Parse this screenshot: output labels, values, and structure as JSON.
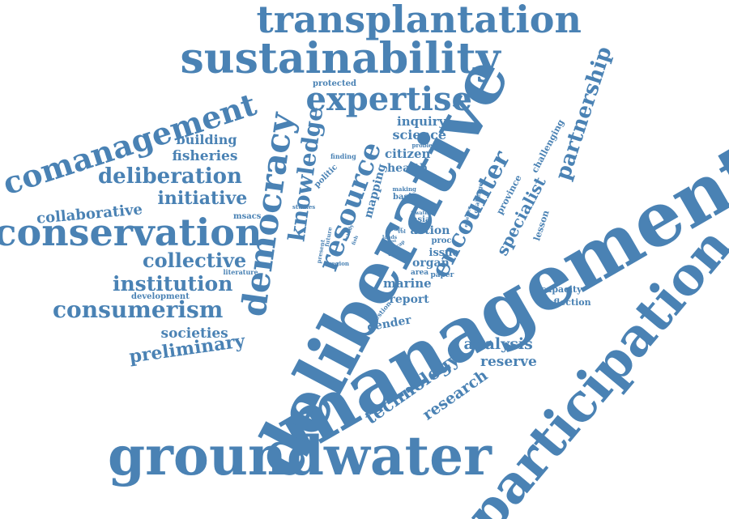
{
  "color": "#4a82b4",
  "words": [
    {
      "text": "management"
    },
    {
      "text": "deliberative"
    },
    {
      "text": "participation"
    },
    {
      "text": "groundwater"
    },
    {
      "text": "sustainability"
    },
    {
      "text": "transplantation"
    },
    {
      "text": "conservation"
    },
    {
      "text": "comanagement"
    },
    {
      "text": "democracy"
    },
    {
      "text": "expertise"
    },
    {
      "text": "consumerism"
    },
    {
      "text": "deliberation"
    },
    {
      "text": "knowledge"
    },
    {
      "text": "resource"
    },
    {
      "text": "encounter"
    },
    {
      "text": "partnership"
    },
    {
      "text": "institution"
    },
    {
      "text": "collective"
    },
    {
      "text": "initiative"
    },
    {
      "text": "preliminary"
    },
    {
      "text": "collaborative"
    },
    {
      "text": "societies"
    },
    {
      "text": "fisheries"
    },
    {
      "text": "building"
    },
    {
      "text": "technology"
    },
    {
      "text": "research"
    },
    {
      "text": "specialist"
    },
    {
      "text": "analysis"
    },
    {
      "text": "reserve"
    },
    {
      "text": "science"
    },
    {
      "text": "inquiry"
    },
    {
      "text": "citizen"
    },
    {
      "text": "health"
    },
    {
      "text": "mapping"
    },
    {
      "text": "marine"
    },
    {
      "text": "report"
    },
    {
      "text": "gender"
    },
    {
      "text": "action"
    },
    {
      "text": "organ"
    },
    {
      "text": "issue"
    },
    {
      "text": "capacity"
    },
    {
      "text": "reflection"
    },
    {
      "text": "province"
    },
    {
      "text": "challenging"
    },
    {
      "text": "lesson"
    },
    {
      "text": "msacs"
    },
    {
      "text": "development"
    },
    {
      "text": "protected"
    },
    {
      "text": "politic"
    },
    {
      "text": "basin"
    },
    {
      "text": "asia"
    },
    {
      "text": "proc"
    },
    {
      "text": "area"
    },
    {
      "text": "paper"
    },
    {
      "text": "finding"
    },
    {
      "text": "problem"
    },
    {
      "text": "literature"
    },
    {
      "text": "making"
    },
    {
      "text": "question"
    },
    {
      "text": "studies"
    },
    {
      "text": "challenge"
    },
    {
      "text": "elsevier"
    },
    {
      "text": "region"
    },
    {
      "text": "present"
    },
    {
      "text": "future"
    },
    {
      "text": "water"
    },
    {
      "text": "order"
    },
    {
      "text": "lands"
    },
    {
      "text": "social"
    },
    {
      "text": "case"
    },
    {
      "text": "cap"
    },
    {
      "text": "vol"
    },
    {
      "text": "fish"
    },
    {
      "text": "last"
    },
    {
      "text": "study"
    }
  ]
}
